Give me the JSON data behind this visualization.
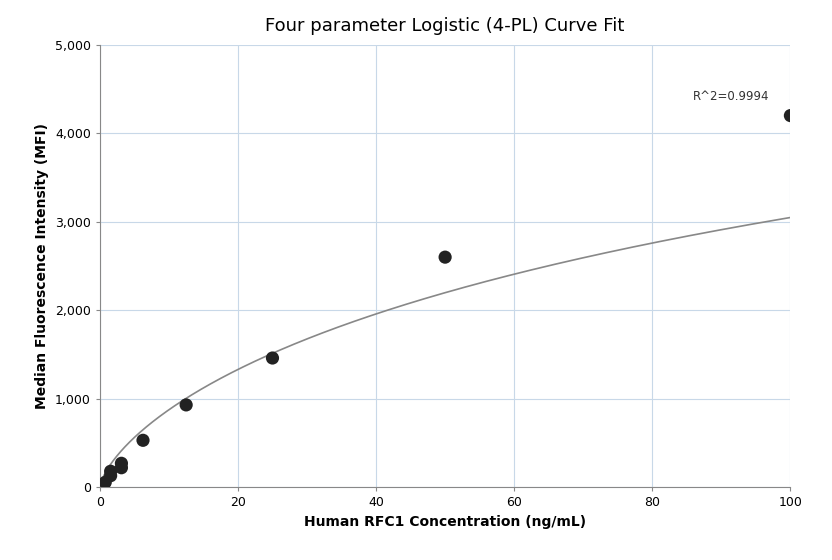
{
  "title": "Four parameter Logistic (4-PL) Curve Fit",
  "xlabel": "Human RFC1 Concentration (ng/mL)",
  "ylabel": "Median Fluorescence Intensity (MFI)",
  "scatter_x": [
    0.781,
    1.563,
    1.563,
    3.125,
    3.125,
    6.25,
    12.5,
    25,
    50,
    100
  ],
  "scatter_y": [
    55,
    130,
    180,
    220,
    270,
    530,
    930,
    1460,
    2600,
    4200
  ],
  "xlim": [
    0,
    100
  ],
  "ylim": [
    0,
    5000
  ],
  "xticks": [
    0,
    20,
    40,
    60,
    80,
    100
  ],
  "yticks": [
    0,
    1000,
    2000,
    3000,
    4000,
    5000
  ],
  "ytick_labels": [
    "0",
    "1,000",
    "2,000",
    "3,000",
    "4,000",
    "5,000"
  ],
  "r2_text": "R^2=0.9994",
  "r2_x": 97,
  "r2_y": 4420,
  "dot_color": "#222222",
  "line_color": "#888888",
  "background_color": "#ffffff",
  "grid_color": "#c8d8e8",
  "title_fontsize": 13,
  "label_fontsize": 10,
  "spine_color": "#888888"
}
